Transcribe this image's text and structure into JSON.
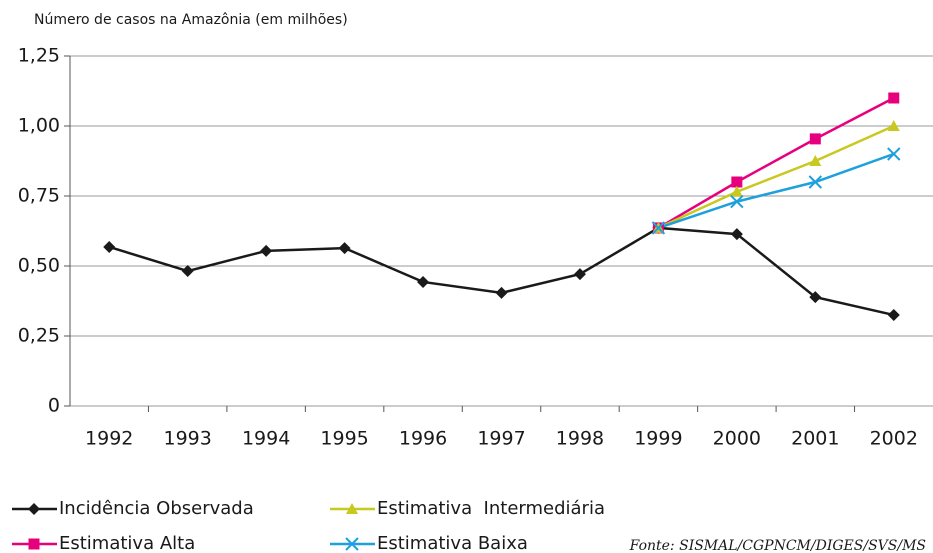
{
  "chart_data": {
    "type": "line",
    "y_label": "Número de casos na Amazônia (em milhões)",
    "categories": [
      "1992",
      "1993",
      "1994",
      "1995",
      "1996",
      "1997",
      "1998",
      "1999",
      "2000",
      "2001",
      "2002"
    ],
    "series": [
      {
        "name": "Incidência Observada",
        "color": "#1a1a1a",
        "marker": "diamond",
        "values": [
          0.568,
          0.482,
          0.554,
          0.564,
          0.443,
          0.404,
          0.471,
          0.636,
          0.614,
          0.389,
          0.325
        ]
      },
      {
        "name": "Estimativa Alta",
        "color": "#e6007e",
        "marker": "square",
        "values": [
          null,
          null,
          null,
          null,
          null,
          null,
          null,
          0.636,
          0.8,
          0.954,
          1.1
        ]
      },
      {
        "name": "Estimativa  Intermediária",
        "color": "#c8c81e",
        "marker": "triangle",
        "values": [
          null,
          null,
          null,
          null,
          null,
          null,
          null,
          0.636,
          0.765,
          0.875,
          1.0
        ]
      },
      {
        "name": "Estimativa Baixa",
        "color": "#1ea0dc",
        "marker": "x",
        "values": [
          null,
          null,
          null,
          null,
          null,
          null,
          null,
          0.636,
          0.73,
          0.8,
          0.9
        ]
      }
    ],
    "ylim": [
      0,
      1.25
    ],
    "yticks": [
      0,
      {
        "value": 0.25,
        "label": "0,25"
      },
      {
        "value": 0.5,
        "label": "0,50"
      },
      {
        "value": 0.75,
        "label": "0,75"
      },
      {
        "value": 1.0,
        "label": "1,00"
      },
      {
        "value": 1.25,
        "label": "1,25"
      }
    ],
    "grid": true,
    "legend": "bottom",
    "source": "Fonte: SISMAL/CGPNCM/DIGES/SVS/MS"
  }
}
